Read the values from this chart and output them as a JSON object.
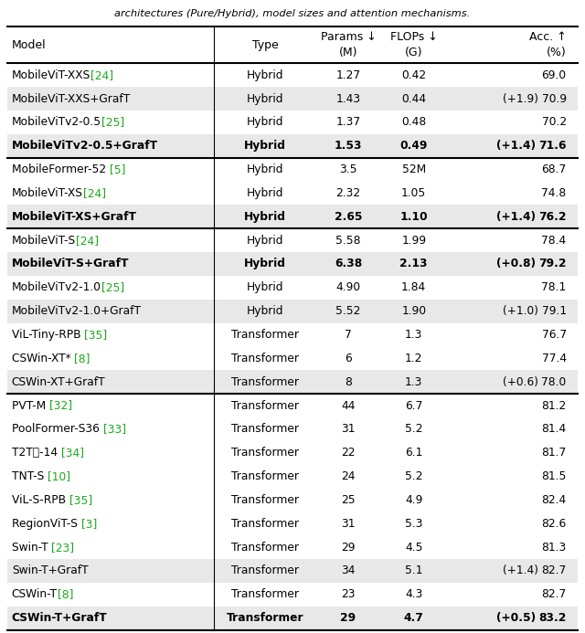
{
  "title_text": "architectures (Pure/Hybrid), model sizes and attention mechanisms.",
  "header_row1": [
    "Model",
    "Type",
    "Params ↓",
    "FLOPs ↓",
    "Acc. ↑"
  ],
  "header_row2": [
    "",
    "",
    "(M)",
    "(G)",
    "(%)"
  ],
  "rows": [
    {
      "model": "MobileViT-XXS",
      "ref": "[24]",
      "type": "Hybrid",
      "params": "1.27",
      "flops": "0.42",
      "acc": "69.0",
      "bold": false,
      "delta": "",
      "shaded": false,
      "group": 1
    },
    {
      "model": "MobileViT-XXS+GrafT",
      "ref": "",
      "type": "Hybrid",
      "params": "1.43",
      "flops": "0.44",
      "acc": "70.9",
      "bold": false,
      "delta": "(+1.9)",
      "shaded": true,
      "group": 1
    },
    {
      "model": "MobileViTv2-0.5",
      "ref": "[25]",
      "type": "Hybrid",
      "params": "1.37",
      "flops": "0.48",
      "acc": "70.2",
      "bold": false,
      "delta": "",
      "shaded": false,
      "group": 1
    },
    {
      "model": "MobileViTv2-0.5+GrafT",
      "ref": "",
      "type": "Hybrid",
      "params": "1.53",
      "flops": "0.49",
      "acc": "71.6",
      "bold": true,
      "delta": "(+1.4)",
      "shaded": true,
      "group": 1
    },
    {
      "model": "MobileFormer-52 ",
      "ref": "[5]",
      "type": "Hybrid",
      "params": "3.5",
      "flops": "52M",
      "acc": "68.7",
      "bold": false,
      "delta": "",
      "shaded": false,
      "group": 2
    },
    {
      "model": "MobileViT-XS",
      "ref": "[24]",
      "type": "Hybrid",
      "params": "2.32",
      "flops": "1.05",
      "acc": "74.8",
      "bold": false,
      "delta": "",
      "shaded": false,
      "group": 2
    },
    {
      "model": "MobileViT-XS+GrafT",
      "ref": "",
      "type": "Hybrid",
      "params": "2.65",
      "flops": "1.10",
      "acc": "76.2",
      "bold": true,
      "delta": "(+1.4)",
      "shaded": true,
      "group": 2
    },
    {
      "model": "MobileViT-S",
      "ref": "[24]",
      "type": "Hybrid",
      "params": "5.58",
      "flops": "1.99",
      "acc": "78.4",
      "bold": false,
      "delta": "",
      "shaded": false,
      "group": 3
    },
    {
      "model": "MobileViT-S+GrafT",
      "ref": "",
      "type": "Hybrid",
      "params": "6.38",
      "flops": "2.13",
      "acc": "79.2",
      "bold": true,
      "delta": "(+0.8)",
      "shaded": true,
      "group": 3
    },
    {
      "model": "MobileViTv2-1.0",
      "ref": "[25]",
      "type": "Hybrid",
      "params": "4.90",
      "flops": "1.84",
      "acc": "78.1",
      "bold": false,
      "delta": "",
      "shaded": false,
      "group": 3
    },
    {
      "model": "MobileViTv2-1.0+GrafT",
      "ref": "",
      "type": "Hybrid",
      "params": "5.52",
      "flops": "1.90",
      "acc": "79.1",
      "bold": false,
      "delta": "(+1.0)",
      "shaded": true,
      "group": 3
    },
    {
      "model": "ViL-Tiny-RPB ",
      "ref": "[35]",
      "type": "Transformer",
      "params": "7",
      "flops": "1.3",
      "acc": "76.7",
      "bold": false,
      "delta": "",
      "shaded": false,
      "group": 3
    },
    {
      "model": "CSWin-XT* ",
      "ref": "[8]",
      "type": "Transformer",
      "params": "6",
      "flops": "1.2",
      "acc": "77.4",
      "bold": false,
      "delta": "",
      "shaded": false,
      "group": 3
    },
    {
      "model": "CSWin-XT+GrafT",
      "ref": "",
      "type": "Transformer",
      "params": "8",
      "flops": "1.3",
      "acc": "78.0",
      "bold": false,
      "delta": "(+0.6)",
      "shaded": true,
      "group": 3
    },
    {
      "model": "PVT-M ",
      "ref": "[32]",
      "type": "Transformer",
      "params": "44",
      "flops": "6.7",
      "acc": "81.2",
      "bold": false,
      "delta": "",
      "shaded": false,
      "group": 4
    },
    {
      "model": "PoolFormer-S36 ",
      "ref": "[33]",
      "type": "Transformer",
      "params": "31",
      "flops": "5.2",
      "acc": "81.4",
      "bold": false,
      "delta": "",
      "shaded": false,
      "group": 4
    },
    {
      "model": "T2Tᵼ-14 ",
      "ref": "[34]",
      "type": "Transformer",
      "params": "22",
      "flops": "6.1",
      "acc": "81.7",
      "bold": false,
      "delta": "",
      "shaded": false,
      "group": 4
    },
    {
      "model": "TNT-S ",
      "ref": "[10]",
      "type": "Transformer",
      "params": "24",
      "flops": "5.2",
      "acc": "81.5",
      "bold": false,
      "delta": "",
      "shaded": false,
      "group": 4
    },
    {
      "model": "ViL-S-RPB ",
      "ref": "[35]",
      "type": "Transformer",
      "params": "25",
      "flops": "4.9",
      "acc": "82.4",
      "bold": false,
      "delta": "",
      "shaded": false,
      "group": 4
    },
    {
      "model": "RegionViT-S ",
      "ref": "[3]",
      "type": "Transformer",
      "params": "31",
      "flops": "5.3",
      "acc": "82.6",
      "bold": false,
      "delta": "",
      "shaded": false,
      "group": 4
    },
    {
      "model": "Swin-T ",
      "ref": "[23]",
      "type": "Transformer",
      "params": "29",
      "flops": "4.5",
      "acc": "81.3",
      "bold": false,
      "delta": "",
      "shaded": false,
      "group": 4
    },
    {
      "model": "Swin-T+GrafT",
      "ref": "",
      "type": "Transformer",
      "params": "34",
      "flops": "5.1",
      "acc": "82.7",
      "bold": false,
      "delta": "(+1.4)",
      "shaded": true,
      "group": 4
    },
    {
      "model": "CSWin-T",
      "ref": "[8]",
      "type": "Transformer",
      "params": "23",
      "flops": "4.3",
      "acc": "82.7",
      "bold": false,
      "delta": "",
      "shaded": false,
      "group": 4
    },
    {
      "model": "CSWin-T+GrafT",
      "ref": "",
      "type": "Transformer",
      "params": "29",
      "flops": "4.7",
      "acc": "83.2",
      "bold": true,
      "delta": "(+0.5)",
      "shaded": true,
      "group": 4
    }
  ],
  "group_separators_after": [
    3,
    6,
    13
  ],
  "shaded_color": "#e8e8e8",
  "ref_color": "#1aaa1a",
  "figsize": [
    6.4,
    6.93
  ],
  "dpi": 100
}
